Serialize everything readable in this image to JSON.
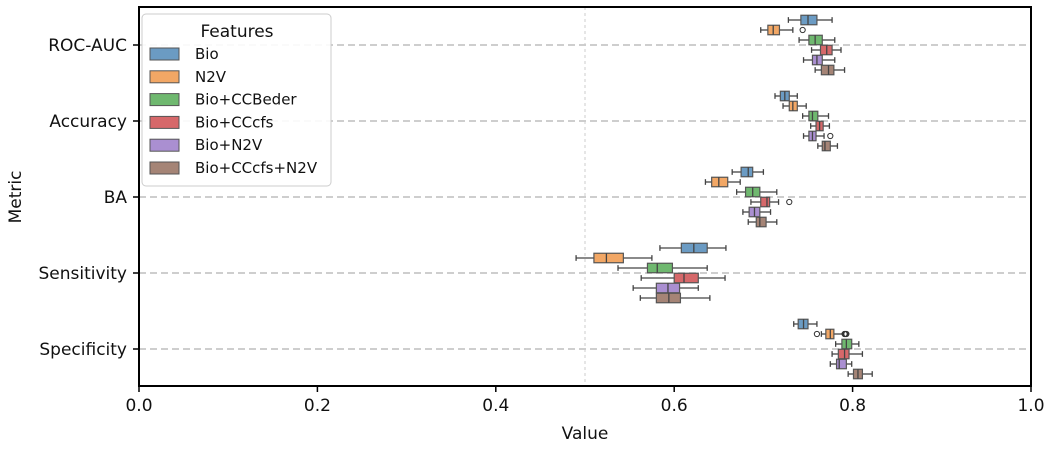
{
  "chart_data": {
    "type": "boxplot",
    "orientation": "horizontal",
    "xlabel": "Value",
    "ylabel": "Metric",
    "xlim": [
      0.0,
      1.0
    ],
    "xticks": [
      "0.0",
      "0.2",
      "0.4",
      "0.6",
      "0.8",
      "1.0"
    ],
    "categories": [
      "ROC-AUC",
      "Accuracy",
      "BA",
      "Sensitivity",
      "Specificity"
    ],
    "reference_line_x": 0.5,
    "grid": "horizontal dashed at categories",
    "legend": {
      "title": "Features",
      "placement": "top-left"
    },
    "series": [
      {
        "name": "Bio",
        "color": "#6b9bc3",
        "boxes": [
          {
            "whislo": 0.728,
            "q1": 0.742,
            "med": 0.75,
            "q3": 0.76,
            "whishi": 0.777,
            "fliers": []
          },
          {
            "whislo": 0.713,
            "q1": 0.719,
            "med": 0.724,
            "q3": 0.729,
            "whishi": 0.738,
            "fliers": []
          },
          {
            "whislo": 0.665,
            "q1": 0.675,
            "med": 0.683,
            "q3": 0.688,
            "whishi": 0.7,
            "fliers": []
          },
          {
            "whislo": 0.584,
            "q1": 0.608,
            "med": 0.622,
            "q3": 0.637,
            "whishi": 0.658,
            "fliers": []
          },
          {
            "whislo": 0.734,
            "q1": 0.739,
            "med": 0.745,
            "q3": 0.75,
            "whishi": 0.76,
            "fliers": []
          }
        ]
      },
      {
        "name": "N2V",
        "color": "#f2a765",
        "boxes": [
          {
            "whislo": 0.697,
            "q1": 0.705,
            "med": 0.711,
            "q3": 0.718,
            "whishi": 0.733,
            "fliers": [
              0.744
            ]
          },
          {
            "whislo": 0.722,
            "q1": 0.729,
            "med": 0.733,
            "q3": 0.738,
            "whishi": 0.748,
            "fliers": []
          },
          {
            "whislo": 0.635,
            "q1": 0.642,
            "med": 0.65,
            "q3": 0.66,
            "whishi": 0.674,
            "fliers": []
          },
          {
            "whislo": 0.49,
            "q1": 0.51,
            "med": 0.524,
            "q3": 0.543,
            "whishi": 0.575,
            "fliers": []
          },
          {
            "whislo": 0.765,
            "q1": 0.77,
            "med": 0.775,
            "q3": 0.779,
            "whishi": 0.79,
            "fliers": [
              0.76,
              0.791,
              0.792,
              0.793
            ]
          }
        ]
      },
      {
        "name": "Bio+CCBeder",
        "color": "#6fb86f",
        "boxes": [
          {
            "whislo": 0.74,
            "q1": 0.751,
            "med": 0.758,
            "q3": 0.766,
            "whishi": 0.78,
            "fliers": []
          },
          {
            "whislo": 0.744,
            "q1": 0.751,
            "med": 0.755,
            "q3": 0.761,
            "whishi": 0.773,
            "fliers": []
          },
          {
            "whislo": 0.67,
            "q1": 0.68,
            "med": 0.688,
            "q3": 0.696,
            "whishi": 0.715,
            "fliers": []
          },
          {
            "whislo": 0.537,
            "q1": 0.57,
            "med": 0.581,
            "q3": 0.598,
            "whishi": 0.637,
            "fliers": []
          },
          {
            "whislo": 0.781,
            "q1": 0.788,
            "med": 0.793,
            "q3": 0.799,
            "whishi": 0.807,
            "fliers": []
          }
        ]
      },
      {
        "name": "Bio+CCcfs",
        "color": "#d6686a",
        "boxes": [
          {
            "whislo": 0.754,
            "q1": 0.764,
            "med": 0.771,
            "q3": 0.777,
            "whishi": 0.787,
            "fliers": []
          },
          {
            "whislo": 0.753,
            "q1": 0.759,
            "med": 0.763,
            "q3": 0.767,
            "whishi": 0.774,
            "fliers": []
          },
          {
            "whislo": 0.686,
            "q1": 0.697,
            "med": 0.704,
            "q3": 0.707,
            "whishi": 0.717,
            "fliers": [
              0.729
            ]
          },
          {
            "whislo": 0.563,
            "q1": 0.6,
            "med": 0.611,
            "q3": 0.627,
            "whishi": 0.657,
            "fliers": []
          },
          {
            "whislo": 0.777,
            "q1": 0.784,
            "med": 0.791,
            "q3": 0.796,
            "whishi": 0.811,
            "fliers": []
          }
        ]
      },
      {
        "name": "Bio+N2V",
        "color": "#aa8fd1",
        "boxes": [
          {
            "whislo": 0.745,
            "q1": 0.755,
            "med": 0.76,
            "q3": 0.766,
            "whishi": 0.78,
            "fliers": []
          },
          {
            "whislo": 0.745,
            "q1": 0.751,
            "med": 0.755,
            "q3": 0.759,
            "whishi": 0.768,
            "fliers": [
              0.775
            ]
          },
          {
            "whislo": 0.677,
            "q1": 0.684,
            "med": 0.69,
            "q3": 0.696,
            "whishi": 0.708,
            "fliers": []
          },
          {
            "whislo": 0.554,
            "q1": 0.58,
            "med": 0.593,
            "q3": 0.606,
            "whishi": 0.627,
            "fliers": []
          },
          {
            "whislo": 0.775,
            "q1": 0.782,
            "med": 0.785,
            "q3": 0.793,
            "whishi": 0.799,
            "fliers": []
          }
        ]
      },
      {
        "name": "Bio+CCcfs+N2V",
        "color": "#a58476",
        "boxes": [
          {
            "whislo": 0.758,
            "q1": 0.765,
            "med": 0.773,
            "q3": 0.779,
            "whishi": 0.791,
            "fliers": []
          },
          {
            "whislo": 0.761,
            "q1": 0.766,
            "med": 0.769,
            "q3": 0.775,
            "whishi": 0.783,
            "fliers": []
          },
          {
            "whislo": 0.683,
            "q1": 0.692,
            "med": 0.696,
            "q3": 0.703,
            "whishi": 0.715,
            "fliers": []
          },
          {
            "whislo": 0.562,
            "q1": 0.58,
            "med": 0.594,
            "q3": 0.607,
            "whishi": 0.64,
            "fliers": []
          },
          {
            "whislo": 0.795,
            "q1": 0.801,
            "med": 0.806,
            "q3": 0.811,
            "whishi": 0.822,
            "fliers": []
          }
        ]
      }
    ]
  }
}
